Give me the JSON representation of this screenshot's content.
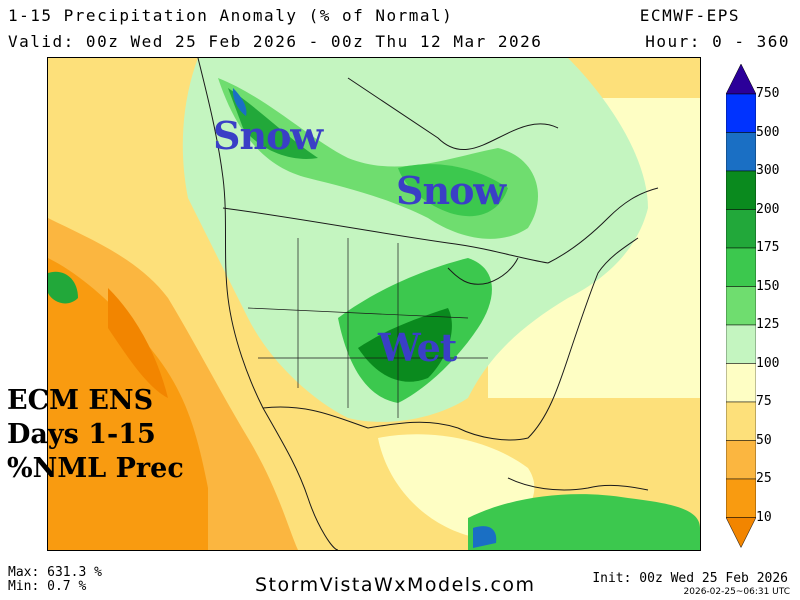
{
  "header": {
    "title": "1-15 Precipitation Anomaly (% of Normal)",
    "valid": "Valid: 00z Wed 25 Feb 2026 - 00z Thu 12 Mar 2026",
    "model": "ECMWF-EPS",
    "hour": "Hour: 0 - 360"
  },
  "annotations": {
    "snow_west": "Snow",
    "snow_east": "Snow",
    "wet": "Wet"
  },
  "label": {
    "line1": "ECM ENS",
    "line2": "Days 1-15",
    "line3": "%NML Prec"
  },
  "colorbar": {
    "ticks": [
      "750",
      "500",
      "300",
      "200",
      "175",
      "150",
      "125",
      "100",
      "75",
      "50",
      "25",
      "10"
    ],
    "colors": [
      "#2b0099",
      "#0033ff",
      "#1a6fc4",
      "#0a8a1e",
      "#22a83a",
      "#3cc84e",
      "#6fdd6f",
      "#c4f5c0",
      "#fefec4",
      "#fde07a",
      "#fbb640",
      "#f99b10",
      "#f28500"
    ]
  },
  "footer": {
    "max": "Max: 631.3 %",
    "min": "Min: 0.7 %",
    "site": "StormVistaWxModels.com",
    "init": "Init: 00z Wed 25 Feb 2026",
    "stamp": "2026-02-25~06:31 UTC"
  }
}
